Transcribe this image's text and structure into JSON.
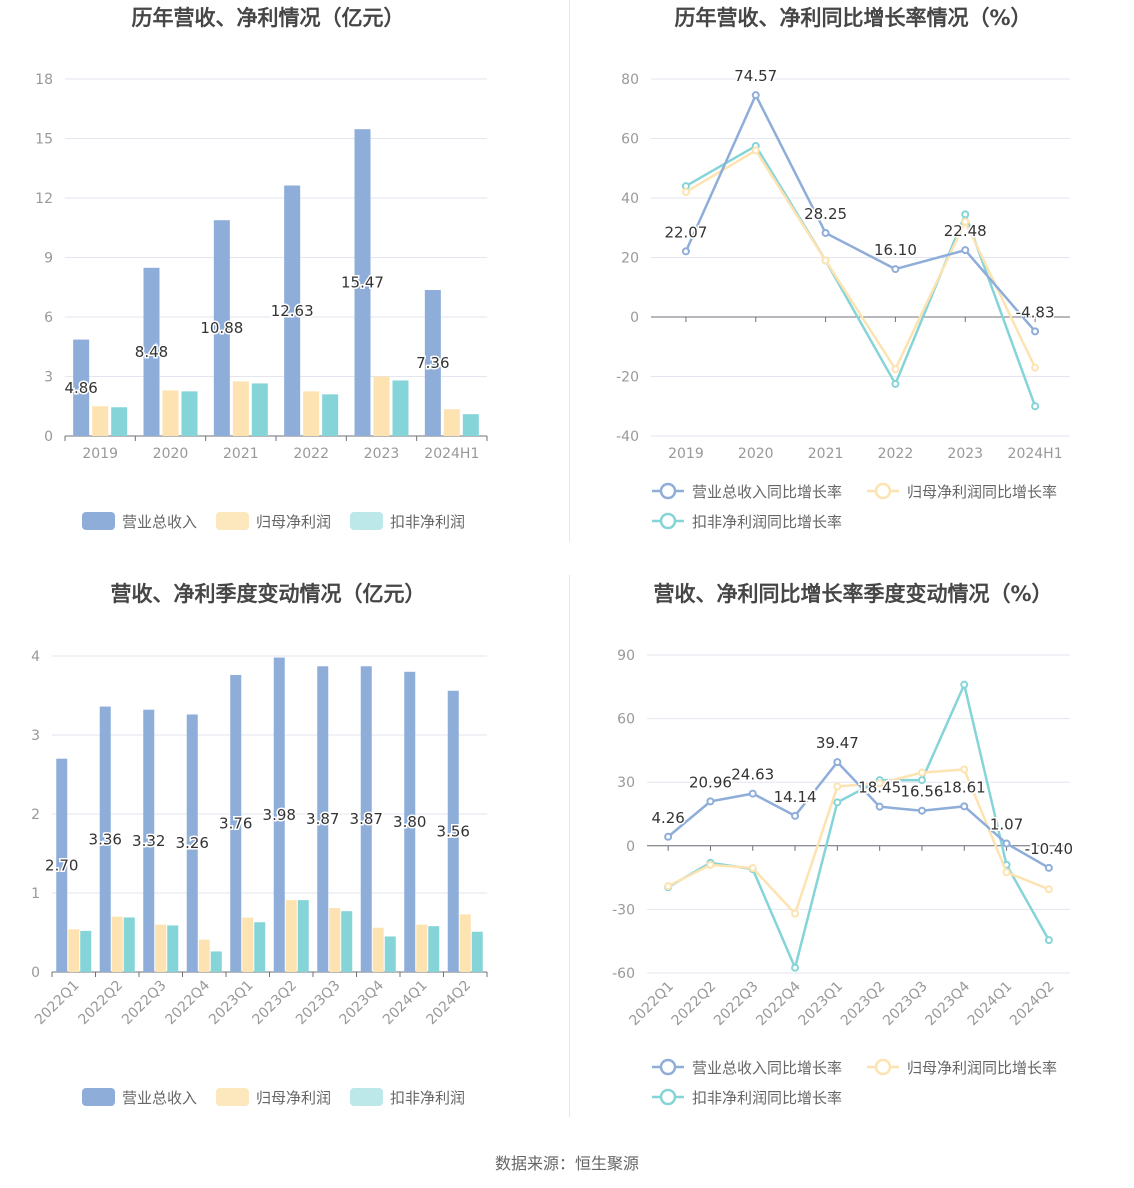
{
  "colors": {
    "revenue": "#8eadd9",
    "net_profit": "#fde3b1",
    "deducted_profit": "#85d4d8",
    "revenue_legend": "#8eadd9",
    "net_profit_legend": "#fde7bd",
    "deducted_profit_legend": "#bde8ea",
    "grid": "#e3e6ef",
    "axis": "#6e7079",
    "tick_text": "#999999",
    "title": "#464646",
    "label": "#333333"
  },
  "source": "数据来源：恒生聚源",
  "chart_data": [
    {
      "id": "annual_amount",
      "type": "bar",
      "title": "历年营收、净利情况（亿元）",
      "categories": [
        "2019",
        "2020",
        "2021",
        "2022",
        "2023",
        "2024H1"
      ],
      "ylim": [
        0,
        18
      ],
      "yticks": [
        0,
        3,
        6,
        9,
        12,
        15,
        18
      ],
      "ytick_labels": [
        "0",
        "3",
        "6",
        "9",
        "12",
        "15",
        "18"
      ],
      "series": [
        {
          "name": "营业总收入",
          "values": [
            4.86,
            8.48,
            10.88,
            12.63,
            15.47,
            7.36
          ],
          "labels": [
            "4.86",
            "8.48",
            "10.88",
            "12.63",
            "15.47",
            "7.36"
          ]
        },
        {
          "name": "归母净利润",
          "values": [
            1.5,
            2.3,
            2.75,
            2.25,
            3.0,
            1.35
          ]
        },
        {
          "name": "扣非净利润",
          "values": [
            1.45,
            2.25,
            2.65,
            2.1,
            2.8,
            1.1
          ]
        }
      ]
    },
    {
      "id": "annual_growth",
      "type": "line",
      "title": "历年营收、净利同比增长率情况（%）",
      "categories": [
        "2019",
        "2020",
        "2021",
        "2022",
        "2023",
        "2024H1"
      ],
      "ylim": [
        -40,
        80
      ],
      "yticks": [
        -40,
        -20,
        0,
        20,
        40,
        60,
        80
      ],
      "ytick_labels": [
        "-40",
        "-20",
        "0",
        "20",
        "40",
        "60",
        "80"
      ],
      "series": [
        {
          "name": "营业总收入同比增长率",
          "values": [
            22.07,
            74.57,
            28.25,
            16.1,
            22.48,
            -4.83
          ],
          "labels": [
            "22.07",
            "74.57",
            "28.25",
            "16.10",
            "22.48",
            "-4.83"
          ]
        },
        {
          "name": "归母净利润同比增长率",
          "values": [
            42,
            56,
            19,
            -17.5,
            32,
            -17
          ]
        },
        {
          "name": "扣非净利润同比增长率",
          "values": [
            44,
            57.5,
            19,
            -22.5,
            34.5,
            -30
          ]
        }
      ]
    },
    {
      "id": "quarterly_amount",
      "type": "bar",
      "title": "营收、净利季度变动情况（亿元）",
      "categories": [
        "2022Q1",
        "2022Q2",
        "2022Q3",
        "2022Q4",
        "2023Q1",
        "2023Q2",
        "2023Q3",
        "2023Q4",
        "2024Q1",
        "2024Q2"
      ],
      "ylim": [
        0,
        4
      ],
      "yticks": [
        0,
        1,
        2,
        3,
        4
      ],
      "ytick_labels": [
        "0",
        "1",
        "2",
        "3",
        "4"
      ],
      "series": [
        {
          "name": "营业总收入",
          "values": [
            2.7,
            3.36,
            3.32,
            3.26,
            3.76,
            3.98,
            3.87,
            3.87,
            3.8,
            3.56
          ],
          "labels": [
            "2.70",
            "3.36",
            "3.32",
            "3.26",
            "3.76",
            "3.98",
            "3.87",
            "3.87",
            "3.80",
            "3.56"
          ]
        },
        {
          "name": "归母净利润",
          "values": [
            0.54,
            0.7,
            0.6,
            0.41,
            0.69,
            0.91,
            0.81,
            0.56,
            0.6,
            0.73
          ]
        },
        {
          "name": "扣非净利润",
          "values": [
            0.52,
            0.69,
            0.59,
            0.26,
            0.63,
            0.91,
            0.77,
            0.45,
            0.58,
            0.51
          ]
        }
      ]
    },
    {
      "id": "quarterly_growth",
      "type": "line",
      "title": "营收、净利同比增长率季度变动情况（%）",
      "categories": [
        "2022Q1",
        "2022Q2",
        "2022Q3",
        "2022Q4",
        "2023Q1",
        "2023Q2",
        "2023Q3",
        "2023Q4",
        "2024Q1",
        "2024Q2"
      ],
      "ylim": [
        -60,
        90
      ],
      "yticks": [
        -60,
        -30,
        0,
        30,
        60,
        90
      ],
      "ytick_labels": [
        "-60",
        "-30",
        "0",
        "30",
        "60",
        "90"
      ],
      "series": [
        {
          "name": "营业总收入同比增长率",
          "values": [
            4.26,
            20.96,
            24.63,
            14.14,
            39.47,
            18.45,
            16.56,
            18.61,
            1.07,
            -10.4
          ],
          "labels": [
            "4.26",
            "20.96",
            "24.63",
            "14.14",
            "39.47",
            "18.45",
            "16.56",
            "18.61",
            "1.07",
            "-10.40"
          ]
        },
        {
          "name": "归母净利润同比增长率",
          "values": [
            -19,
            -9,
            -10.5,
            -32,
            28,
            29.5,
            34.5,
            36,
            -12.5,
            -20.5
          ]
        },
        {
          "name": "扣非净利润同比增长率",
          "values": [
            -19.5,
            -8,
            -11,
            -57.5,
            20.5,
            31,
            31,
            76,
            -9,
            -44.5
          ]
        }
      ]
    }
  ]
}
